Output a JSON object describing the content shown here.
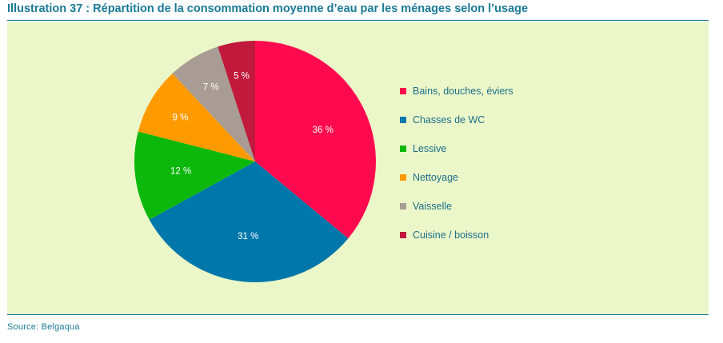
{
  "title": "Illustration 37 : Répartition de la consommation moyenne d’eau par les ménages selon l’usage",
  "source": "Source: Belgaqua",
  "chart_data": {
    "type": "pie",
    "unit": "%",
    "legend_position": "right",
    "slices": [
      {
        "label": "Bains, douches, éviers",
        "value": 36,
        "display": "36 %",
        "color": "#ff0a4e"
      },
      {
        "label": "Chasses de WC",
        "value": 31,
        "display": "31 %",
        "color": "#0077aa"
      },
      {
        "label": "Lessive",
        "value": 12,
        "display": "12 %",
        "color": "#0cb80c"
      },
      {
        "label": "Nettoyage",
        "value": 9,
        "display": "9 %",
        "color": "#ff9b00"
      },
      {
        "label": "Vaisselle",
        "value": 7,
        "display": "7 %",
        "color": "#a89c94"
      },
      {
        "label": "Cuisine / boisson",
        "value": 5,
        "display": "5 %",
        "color": "#c0193c"
      }
    ]
  }
}
